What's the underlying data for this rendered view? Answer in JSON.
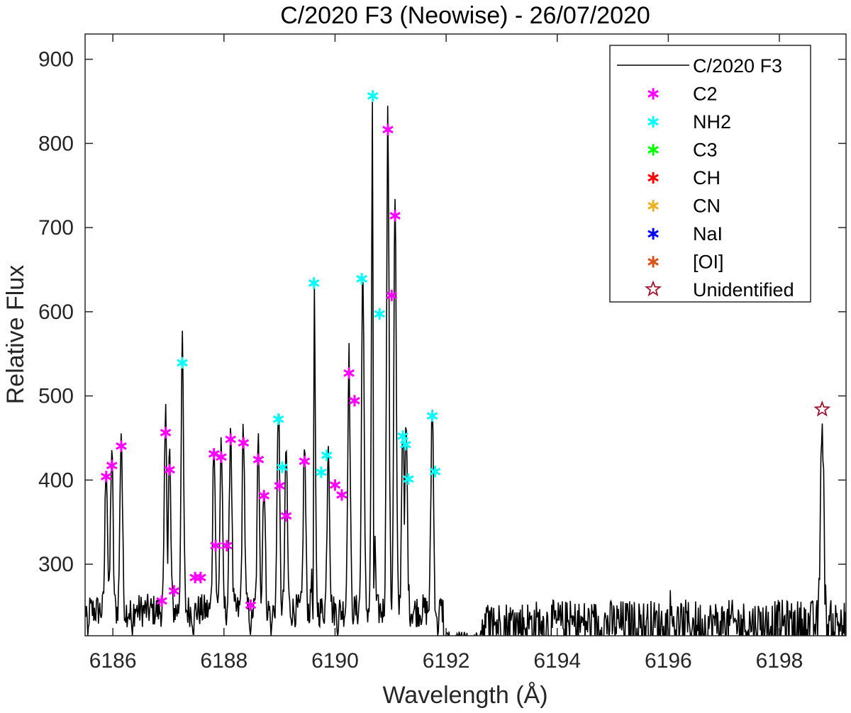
{
  "chart_data": {
    "type": "line",
    "title": "C/2020 F3 (Neowise) - 26/07/2020",
    "xlabel": "Wavelength (Å)",
    "ylabel": "Relative Flux",
    "xlim": [
      6185.5,
      6199.2
    ],
    "ylim": [
      215,
      930
    ],
    "xticks": [
      6186,
      6188,
      6190,
      6192,
      6194,
      6196,
      6198
    ],
    "yticks": [
      300,
      400,
      500,
      600,
      700,
      800,
      900
    ],
    "grid": false,
    "legend_position": "top-right",
    "series": [
      {
        "name": "C/2020 F3",
        "color": "#000000",
        "peaks": [
          [
            6185.88,
            405
          ],
          [
            6185.98,
            418
          ],
          [
            6186.15,
            441
          ],
          [
            6186.95,
            457
          ],
          [
            6187.02,
            413
          ],
          [
            6187.25,
            540
          ],
          [
            6187.82,
            432
          ],
          [
            6187.95,
            428
          ],
          [
            6188.12,
            449
          ],
          [
            6188.35,
            445
          ],
          [
            6188.62,
            425
          ],
          [
            6188.72,
            382
          ],
          [
            6188.98,
            473
          ],
          [
            6189.12,
            418
          ],
          [
            6189.45,
            423
          ],
          [
            6189.62,
            635
          ],
          [
            6189.88,
            430
          ],
          [
            6190.25,
            528
          ],
          [
            6190.5,
            640
          ],
          [
            6190.68,
            857
          ],
          [
            6190.95,
            817
          ],
          [
            6191.08,
            715
          ],
          [
            6191.22,
            453
          ],
          [
            6191.28,
            444
          ],
          [
            6191.75,
            477
          ],
          [
            6198.77,
            475
          ]
        ],
        "dips": [
          [
            6185.55,
            215
          ],
          [
            6186.35,
            215
          ],
          [
            6187.45,
            215
          ],
          [
            6188.48,
            215
          ],
          [
            6188.85,
            215
          ],
          [
            6189.6,
            215
          ],
          [
            6190.05,
            215
          ],
          [
            6190.7,
            245
          ],
          [
            6191.35,
            300
          ],
          [
            6191.85,
            215
          ]
        ],
        "gaps": [
          [
            6191.95,
            6192.6
          ]
        ]
      },
      {
        "name": "C2",
        "color": "#ff00ff",
        "marker": "*",
        "points": [
          [
            6185.88,
            405
          ],
          [
            6185.98,
            418
          ],
          [
            6186.15,
            441
          ],
          [
            6186.88,
            257
          ],
          [
            6186.95,
            457
          ],
          [
            6187.02,
            413
          ],
          [
            6187.1,
            269
          ],
          [
            6187.48,
            285
          ],
          [
            6187.58,
            285
          ],
          [
            6187.82,
            432
          ],
          [
            6187.85,
            323
          ],
          [
            6187.95,
            428
          ],
          [
            6188.05,
            323
          ],
          [
            6188.12,
            449
          ],
          [
            6188.35,
            445
          ],
          [
            6188.48,
            252
          ],
          [
            6188.62,
            425
          ],
          [
            6188.72,
            382
          ],
          [
            6189.0,
            394
          ],
          [
            6189.12,
            358
          ],
          [
            6189.45,
            423
          ],
          [
            6190.0,
            395
          ],
          [
            6190.12,
            383
          ],
          [
            6190.25,
            528
          ],
          [
            6190.35,
            495
          ],
          [
            6190.95,
            817
          ],
          [
            6191.02,
            620
          ],
          [
            6191.08,
            715
          ]
        ]
      },
      {
        "name": "NH2",
        "color": "#00ffff",
        "marker": "*",
        "points": [
          [
            6187.25,
            540
          ],
          [
            6188.98,
            473
          ],
          [
            6189.05,
            416
          ],
          [
            6189.62,
            635
          ],
          [
            6189.75,
            410
          ],
          [
            6189.85,
            430
          ],
          [
            6190.48,
            640
          ],
          [
            6190.68,
            857
          ],
          [
            6190.8,
            598
          ],
          [
            6191.22,
            453
          ],
          [
            6191.27,
            443
          ],
          [
            6191.32,
            402
          ],
          [
            6191.75,
            477
          ],
          [
            6191.8,
            411
          ]
        ]
      },
      {
        "name": "C3",
        "color": "#00ff00",
        "marker": "*",
        "points": []
      },
      {
        "name": "CH",
        "color": "#ff0000",
        "marker": "*",
        "points": []
      },
      {
        "name": "CN",
        "color": "#edb120",
        "marker": "*",
        "points": []
      },
      {
        "name": "NaI",
        "color": "#0000ff",
        "marker": "*",
        "points": []
      },
      {
        "name": "[OI]",
        "color": "#d95319",
        "marker": "*",
        "points": []
      },
      {
        "name": "Unidentified",
        "color": "#a2142f",
        "marker": "star-open",
        "points": [
          [
            6198.77,
            484
          ]
        ]
      }
    ]
  }
}
